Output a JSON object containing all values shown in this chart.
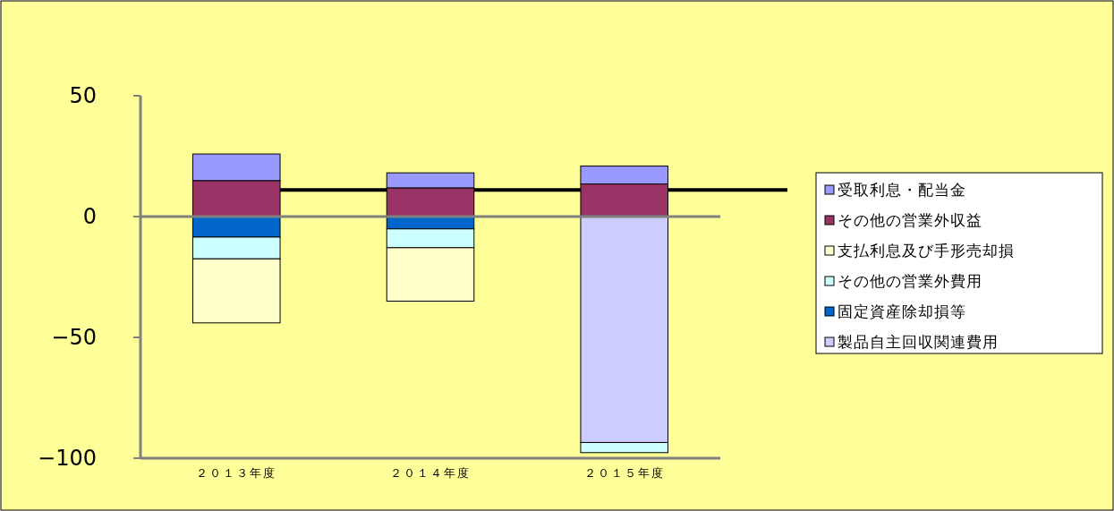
{
  "chart_data": {
    "type": "bar",
    "stacked": true,
    "categories": [
      "２０１３年度",
      "２０１４年度",
      "２０１５年度"
    ],
    "series": [
      {
        "name": "製品自主回収関連費用",
        "color": "#ccccff",
        "values": [
          null,
          null,
          -93.5
        ]
      },
      {
        "name": "固定資産除却損等",
        "color": "#0066cc",
        "values": [
          -8.5,
          -5.1,
          null
        ]
      },
      {
        "name": "その他の営業外費用",
        "color": "#ccffff",
        "values": [
          -9.0,
          -7.8,
          -4.2
        ]
      },
      {
        "name": "支払利息及び手形売却損",
        "color": "#ffffcc",
        "values": [
          -26.5,
          -22.1,
          null
        ]
      },
      {
        "name": "その他の営業外収益",
        "color": "#993366",
        "values": [
          14.9,
          11.9,
          13.5
        ]
      },
      {
        "name": "受取利息・配当金",
        "color": "#9999ff",
        "values": [
          11.0,
          6.2,
          7.4
        ]
      }
    ],
    "ylim": [
      -100,
      50
    ],
    "yticks": [
      -100,
      -50,
      0,
      50
    ],
    "ref_lines": [
      {
        "axis": "y",
        "value": 11,
        "color": "#000000"
      }
    ],
    "legend": "right"
  }
}
